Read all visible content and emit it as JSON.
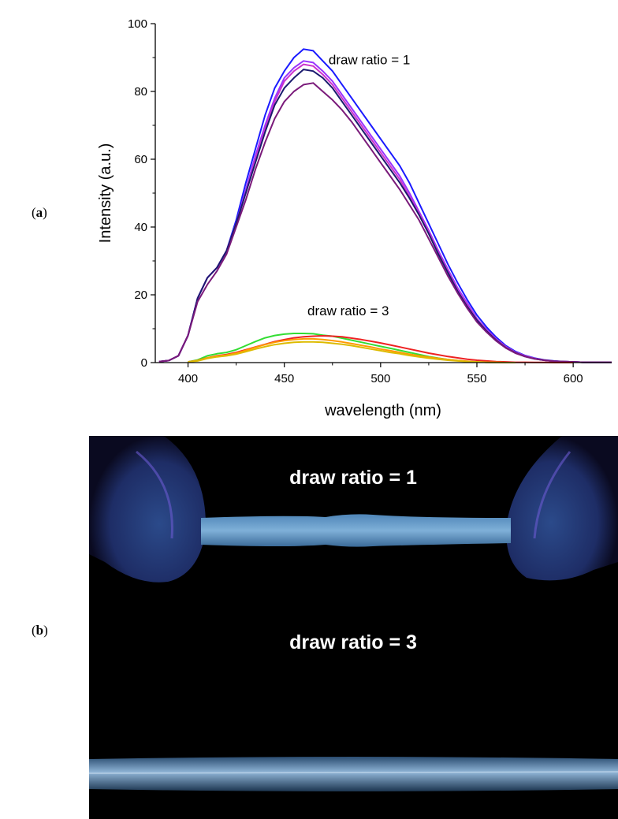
{
  "panels": {
    "a": {
      "open": "(",
      "letter": "a",
      "close": ")"
    },
    "b": {
      "open": "(",
      "letter": "b",
      "close": ")"
    }
  },
  "chart_data": {
    "type": "line",
    "xlabel": "wavelength (nm)",
    "ylabel": "Intensity (a.u.)",
    "xlim": [
      383,
      620
    ],
    "ylim": [
      0,
      100
    ],
    "xticks": [
      400,
      450,
      500,
      550,
      600
    ],
    "yticks": [
      0,
      20,
      40,
      60,
      80,
      100
    ],
    "grid": false,
    "annotations": [
      {
        "text": "draw ratio = 1",
        "x": 473,
        "y": 88
      },
      {
        "text": "draw ratio = 3",
        "x": 462,
        "y": 14
      }
    ],
    "series": [
      {
        "group": "draw ratio = 1",
        "color": "#1a1aff",
        "x": [
          385,
          390,
          395,
          400,
          405,
          410,
          415,
          420,
          425,
          430,
          435,
          440,
          445,
          450,
          455,
          460,
          465,
          470,
          475,
          480,
          485,
          490,
          495,
          500,
          505,
          510,
          515,
          520,
          525,
          530,
          535,
          540,
          545,
          550,
          555,
          560,
          565,
          570,
          575,
          580,
          585,
          590,
          595,
          600,
          605,
          610,
          615,
          620
        ],
        "y": [
          0.3,
          0.6,
          2,
          8,
          19,
          25,
          28,
          33,
          42,
          53,
          63,
          73,
          81,
          86,
          90,
          92.5,
          92,
          89,
          86,
          82,
          78,
          74,
          70,
          66,
          62,
          58,
          53,
          47,
          41,
          35,
          29,
          23.5,
          18.5,
          14,
          10.5,
          7.5,
          5,
          3.3,
          2.1,
          1.3,
          0.8,
          0.5,
          0.3,
          0.2,
          0.1,
          0.1,
          0.1,
          0.1
        ]
      },
      {
        "group": "draw ratio = 1",
        "color": "#9933ff",
        "x": [
          385,
          390,
          395,
          400,
          405,
          410,
          415,
          420,
          425,
          430,
          435,
          440,
          445,
          450,
          455,
          460,
          465,
          470,
          475,
          480,
          485,
          490,
          495,
          500,
          505,
          510,
          515,
          520,
          525,
          530,
          535,
          540,
          545,
          550,
          555,
          560,
          565,
          570,
          575,
          580,
          585,
          590,
          595,
          600,
          605,
          610,
          615,
          620
        ],
        "y": [
          0.3,
          0.6,
          2,
          8,
          19,
          25,
          28,
          33,
          41,
          51,
          61,
          70,
          78,
          84,
          87,
          89,
          88.5,
          86,
          83,
          79,
          75,
          71,
          67,
          63,
          59,
          55,
          50,
          44.5,
          39,
          33,
          27.5,
          22,
          17.5,
          13,
          9.8,
          7,
          4.7,
          3.1,
          2,
          1.2,
          0.7,
          0.4,
          0.3,
          0.2,
          0.1,
          0.1,
          0.1,
          0.1
        ]
      },
      {
        "group": "draw ratio = 1",
        "color": "#cc33cc",
        "x": [
          385,
          390,
          395,
          400,
          405,
          410,
          415,
          420,
          425,
          430,
          435,
          440,
          445,
          450,
          455,
          460,
          465,
          470,
          475,
          480,
          485,
          490,
          495,
          500,
          505,
          510,
          515,
          520,
          525,
          530,
          535,
          540,
          545,
          550,
          555,
          560,
          565,
          570,
          575,
          580,
          585,
          590,
          595,
          600,
          605,
          610,
          615,
          620
        ],
        "y": [
          0.3,
          0.6,
          2,
          8,
          19,
          25,
          28,
          33,
          41,
          50,
          60,
          69,
          77,
          83,
          86,
          88,
          87.5,
          85,
          82,
          78,
          74,
          70,
          66,
          62,
          58,
          54,
          49,
          44,
          38.5,
          32.5,
          27,
          21.5,
          17,
          12.8,
          9.5,
          6.8,
          4.6,
          3,
          1.9,
          1.2,
          0.7,
          0.4,
          0.3,
          0.2,
          0.1,
          0.1,
          0.1,
          0.1
        ]
      },
      {
        "group": "draw ratio = 1",
        "color": "#1a1a6e",
        "x": [
          385,
          390,
          395,
          400,
          405,
          410,
          415,
          420,
          425,
          430,
          435,
          440,
          445,
          450,
          455,
          460,
          465,
          470,
          475,
          480,
          485,
          490,
          495,
          500,
          505,
          510,
          515,
          520,
          525,
          530,
          535,
          540,
          545,
          550,
          555,
          560,
          565,
          570,
          575,
          580,
          585,
          590,
          595,
          600,
          605,
          610,
          615,
          620
        ],
        "y": [
          0.3,
          0.6,
          2,
          8,
          19,
          25,
          28,
          33,
          41,
          50,
          59,
          68,
          76,
          81,
          84,
          86.5,
          86,
          84,
          81,
          77,
          73,
          69,
          65,
          61,
          57,
          53,
          48.5,
          43.5,
          38,
          32,
          26.5,
          21,
          16.5,
          12.5,
          9.3,
          6.6,
          4.4,
          2.9,
          1.8,
          1.1,
          0.7,
          0.4,
          0.3,
          0.2,
          0.1,
          0.1,
          0.1,
          0.1
        ]
      },
      {
        "group": "draw ratio = 1",
        "color": "#7a1a7a",
        "x": [
          385,
          390,
          395,
          400,
          405,
          410,
          415,
          420,
          425,
          430,
          435,
          440,
          445,
          450,
          455,
          460,
          465,
          470,
          475,
          480,
          485,
          490,
          495,
          500,
          505,
          510,
          515,
          520,
          525,
          530,
          535,
          540,
          545,
          550,
          555,
          560,
          565,
          570,
          575,
          580,
          585,
          590,
          595,
          600,
          605,
          610,
          615,
          620
        ],
        "y": [
          0.3,
          0.6,
          2,
          8,
          18,
          23,
          27,
          32,
          40,
          48,
          57,
          65,
          72,
          77,
          80,
          82,
          82.5,
          80,
          77.5,
          74.5,
          71,
          67,
          63,
          59,
          55,
          51,
          46.5,
          42,
          36.5,
          31,
          25.5,
          20.5,
          16,
          12,
          9,
          6.4,
          4.3,
          2.8,
          1.8,
          1.1,
          0.7,
          0.4,
          0.3,
          0.2,
          0.1,
          0.1,
          0.1,
          0.1
        ]
      },
      {
        "group": "draw ratio = 3",
        "color": "#33dd33",
        "x": [
          400,
          405,
          410,
          415,
          420,
          425,
          430,
          435,
          440,
          445,
          450,
          455,
          460,
          465,
          470,
          475,
          480,
          485,
          490,
          495,
          500,
          505,
          510,
          515,
          520,
          525,
          530,
          535,
          540,
          545,
          550,
          555,
          560
        ],
        "y": [
          0.2,
          0.8,
          2,
          2.6,
          3,
          3.8,
          5,
          6.2,
          7.3,
          8,
          8.4,
          8.6,
          8.6,
          8.5,
          8.1,
          7.8,
          7.2,
          6.6,
          6,
          5.4,
          4.8,
          4.2,
          3.6,
          3,
          2.4,
          1.8,
          1.3,
          0.9,
          0.6,
          0.3,
          0.2,
          0.1,
          0.05
        ]
      },
      {
        "group": "draw ratio = 3",
        "color": "#ee2222",
        "x": [
          400,
          405,
          410,
          415,
          420,
          425,
          430,
          435,
          440,
          445,
          450,
          455,
          460,
          465,
          470,
          475,
          480,
          485,
          490,
          495,
          500,
          505,
          510,
          515,
          520,
          525,
          530,
          535,
          540,
          545,
          550,
          555,
          560,
          565,
          570,
          575,
          580,
          585,
          590,
          595,
          600
        ],
        "y": [
          0.2,
          0.6,
          1.4,
          2,
          2.4,
          3,
          3.8,
          4.6,
          5.4,
          6.2,
          6.8,
          7.3,
          7.6,
          7.8,
          7.9,
          7.8,
          7.6,
          7.2,
          6.8,
          6.3,
          5.8,
          5.2,
          4.6,
          4,
          3.4,
          2.8,
          2.3,
          1.8,
          1.4,
          1,
          0.7,
          0.5,
          0.3,
          0.2,
          0.1,
          0.1,
          0.05,
          0.05,
          0,
          0,
          0
        ]
      },
      {
        "group": "draw ratio = 3",
        "color": "#ff9900",
        "x": [
          400,
          405,
          410,
          415,
          420,
          425,
          430,
          435,
          440,
          445,
          450,
          455,
          460,
          465,
          470,
          475,
          480,
          485,
          490,
          495,
          500,
          505,
          510,
          515,
          520,
          525,
          530,
          535,
          540,
          545,
          550,
          555,
          560,
          565,
          570
        ],
        "y": [
          0.2,
          0.6,
          1.4,
          1.9,
          2.2,
          2.8,
          3.6,
          4.5,
          5.3,
          6,
          6.5,
          6.8,
          7,
          7,
          6.8,
          6.5,
          6.1,
          5.6,
          5.1,
          4.6,
          4,
          3.5,
          3,
          2.5,
          2,
          1.6,
          1.2,
          0.9,
          0.6,
          0.4,
          0.2,
          0.1,
          0.05,
          0,
          0
        ]
      },
      {
        "group": "draw ratio = 3",
        "color": "#ddbb00",
        "x": [
          400,
          405,
          410,
          415,
          420,
          425,
          430,
          435,
          440,
          445,
          450,
          455,
          460,
          465,
          470,
          475,
          480,
          485,
          490,
          495,
          500,
          505,
          510,
          515,
          520,
          525,
          530,
          535,
          540,
          545,
          550,
          555,
          560,
          565,
          570
        ],
        "y": [
          0.2,
          0.5,
          1.2,
          1.7,
          2,
          2.5,
          3.2,
          4,
          4.7,
          5.3,
          5.7,
          6,
          6.1,
          6.1,
          6,
          5.7,
          5.4,
          5,
          4.5,
          4,
          3.5,
          3,
          2.6,
          2.1,
          1.7,
          1.3,
          1,
          0.7,
          0.5,
          0.3,
          0.2,
          0.1,
          0.05,
          0,
          0
        ]
      }
    ]
  },
  "photo": {
    "label_top": "draw ratio = 1",
    "label_bottom": "draw ratio = 3"
  }
}
